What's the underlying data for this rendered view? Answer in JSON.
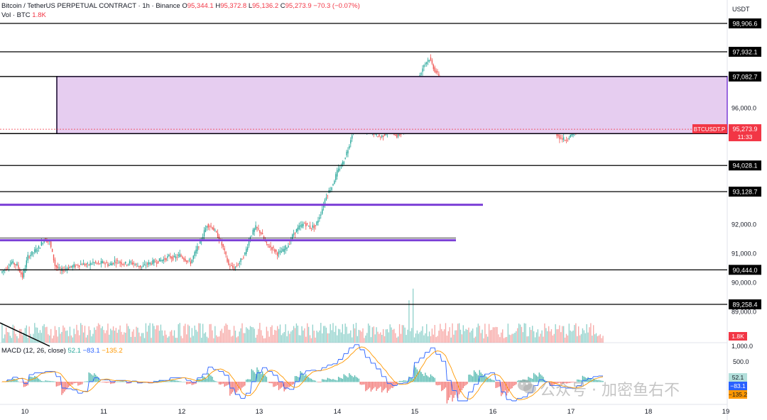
{
  "header": {
    "symbol_line": "Bitcoin / TetherUS PERPETUAL CONTRACT · 1h · Binance",
    "o_label": "O",
    "o_val": "95,344.1",
    "h_label": "H",
    "h_val": "95,372.8",
    "l_label": "L",
    "l_val": "95,136.2",
    "c_label": "C",
    "c_val": "95,273.9",
    "change": "−70.3 (−0.07%)",
    "vol_label": "Vol · BTC",
    "vol_val": "1.8K"
  },
  "macd_header": {
    "label": "MACD (12, 26, close)",
    "v1": "52.1",
    "v2": "−83.1",
    "v3": "−135.2"
  },
  "watermark": "公众号 · 加密鱼右不",
  "colors": {
    "up": "#26a69a",
    "down": "#ef5350",
    "zone_fill": "#e6cdf0",
    "zone_border": "#7b3fd6",
    "level_line": "#000000",
    "purple_line": "#7b3fd6",
    "macd_line": "#2962ff",
    "signal_line": "#ff9800"
  },
  "chart_data": {
    "type": "candlestick",
    "title": "Bitcoin / TetherUS PERPETUAL CONTRACT · 1h · Binance",
    "x_ticks": [
      "10",
      "11",
      "12",
      "13",
      "14",
      "15",
      "16",
      "17",
      "18",
      "19"
    ],
    "y_axis_unit": "USDT",
    "y_ticks": [
      "96,000.0",
      "92,000.0",
      "91,000.0",
      "90,000.0",
      "89,000.0"
    ],
    "y_range": [
      88500,
      99500
    ],
    "horizontal_levels": [
      {
        "label": "98,906.6",
        "value": 98906.6
      },
      {
        "label": "97,932.1",
        "value": 97932.1
      },
      {
        "label": "97,082.7",
        "value": 97082.7
      },
      {
        "label": "95,122.5",
        "value": 95122.5
      },
      {
        "label": "94,028.1",
        "value": 94028.1
      },
      {
        "label": "93,128.7",
        "value": 93128.7
      },
      {
        "label": "90,444.0",
        "value": 90444.0
      },
      {
        "label": "89,258.4",
        "value": 89258.4
      }
    ],
    "zone": {
      "low": 95122.5,
      "high": 97082.7
    },
    "purple_lines": [
      92680,
      91460
    ],
    "last_price": {
      "label": "BTCUSDT.P",
      "value": "95,273.9",
      "countdown": "11:33"
    },
    "volume_axis": {
      "last": "1.8K",
      "top_tick": "1,000.0"
    },
    "macd_axis": {
      "ticks": [
        "500.0",
        "0.0"
      ],
      "values": [
        "52.1",
        "−83.1",
        "−135.2"
      ]
    },
    "price_path": [
      [
        0,
        90350
      ],
      [
        4,
        90500
      ],
      [
        8,
        90700
      ],
      [
        12,
        90600
      ],
      [
        16,
        90200
      ],
      [
        20,
        90900
      ],
      [
        24,
        91050
      ],
      [
        28,
        91200
      ],
      [
        32,
        91500
      ],
      [
        36,
        91400
      ],
      [
        40,
        90600
      ],
      [
        44,
        90400
      ],
      [
        48,
        90500
      ],
      [
        52,
        90550
      ],
      [
        56,
        90600
      ],
      [
        60,
        90650
      ],
      [
        64,
        90600
      ],
      [
        68,
        90700
      ],
      [
        72,
        90650
      ],
      [
        76,
        90700
      ],
      [
        80,
        90600
      ],
      [
        84,
        90750
      ],
      [
        88,
        90700
      ],
      [
        92,
        90650
      ],
      [
        96,
        90700
      ],
      [
        100,
        90600
      ],
      [
        104,
        90550
      ],
      [
        108,
        90650
      ],
      [
        112,
        90700
      ],
      [
        116,
        90750
      ],
      [
        120,
        90800
      ],
      [
        124,
        90900
      ],
      [
        128,
        90850
      ],
      [
        132,
        90950
      ],
      [
        136,
        90800
      ],
      [
        140,
        90700
      ],
      [
        144,
        91100
      ],
      [
        148,
        91500
      ],
      [
        152,
        92000
      ],
      [
        156,
        91900
      ],
      [
        160,
        91600
      ],
      [
        164,
        91200
      ],
      [
        168,
        90600
      ],
      [
        172,
        90500
      ],
      [
        176,
        90700
      ],
      [
        180,
        91000
      ],
      [
        184,
        91600
      ],
      [
        188,
        91900
      ],
      [
        192,
        91700
      ],
      [
        196,
        91300
      ],
      [
        200,
        91200
      ],
      [
        204,
        91000
      ],
      [
        208,
        91100
      ],
      [
        212,
        91300
      ],
      [
        216,
        91700
      ],
      [
        220,
        91900
      ],
      [
        224,
        92050
      ],
      [
        228,
        91900
      ],
      [
        232,
        91950
      ],
      [
        236,
        92400
      ],
      [
        240,
        93000
      ],
      [
        244,
        93300
      ],
      [
        248,
        93800
      ],
      [
        252,
        94100
      ],
      [
        256,
        94600
      ],
      [
        260,
        95300
      ],
      [
        264,
        95500
      ],
      [
        268,
        95200
      ],
      [
        272,
        95250
      ],
      [
        276,
        95100
      ],
      [
        280,
        95000
      ],
      [
        284,
        95150
      ],
      [
        288,
        95200
      ],
      [
        292,
        95050
      ],
      [
        296,
        95150
      ],
      [
        300,
        95400
      ],
      [
        304,
        96500
      ],
      [
        308,
        97000
      ],
      [
        312,
        97500
      ],
      [
        316,
        97700
      ],
      [
        320,
        97300
      ],
      [
        324,
        97000
      ],
      [
        328,
        96600
      ],
      [
        332,
        96300
      ],
      [
        336,
        96000
      ],
      [
        340,
        96200
      ],
      [
        344,
        96500
      ],
      [
        348,
        96800
      ],
      [
        352,
        97000
      ],
      [
        356,
        96900
      ],
      [
        360,
        96700
      ],
      [
        364,
        96300
      ],
      [
        368,
        95700
      ],
      [
        372,
        95400
      ],
      [
        376,
        95500
      ],
      [
        380,
        95600
      ],
      [
        384,
        95500
      ],
      [
        388,
        95450
      ],
      [
        392,
        95400
      ],
      [
        396,
        95550
      ],
      [
        400,
        95500
      ],
      [
        404,
        95300
      ],
      [
        408,
        95200
      ],
      [
        412,
        95000
      ],
      [
        416,
        94900
      ],
      [
        420,
        95050
      ],
      [
        424,
        95200
      ],
      [
        428,
        95400
      ],
      [
        432,
        95450
      ],
      [
        436,
        95400
      ],
      [
        440,
        95350
      ],
      [
        444,
        95274
      ]
    ]
  }
}
